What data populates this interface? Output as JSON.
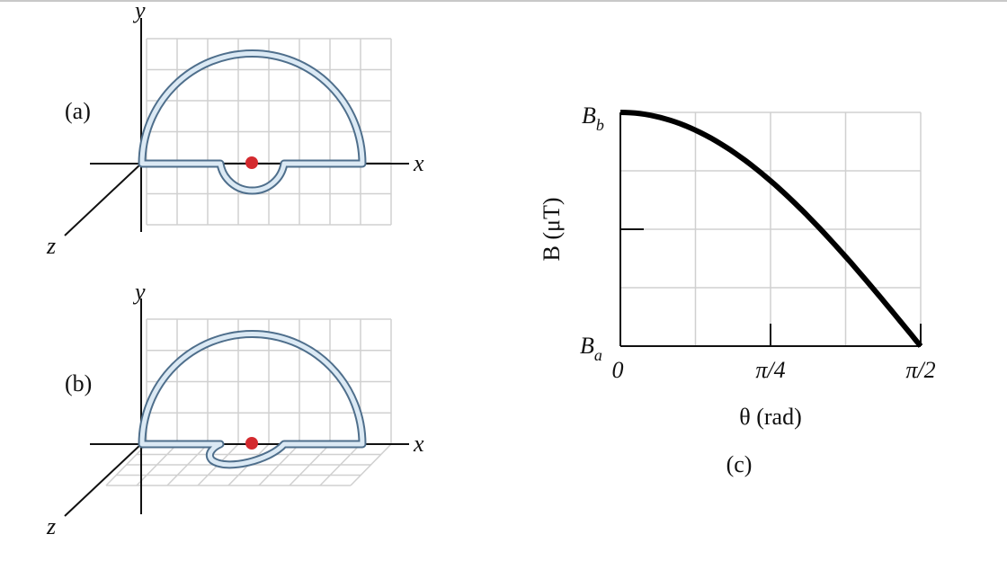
{
  "panel_a": {
    "label": "(a)",
    "axes": {
      "x": "x",
      "y": "y",
      "z": "z"
    }
  },
  "panel_b": {
    "label": "(b)",
    "axes": {
      "x": "x",
      "y": "y",
      "z": "z"
    }
  },
  "panel_c": {
    "label": "(c)",
    "y_axis": {
      "title": "B (μT)",
      "top": {
        "main": "B",
        "sub": "b"
      },
      "bottom": {
        "main": "B",
        "sub": "a"
      }
    },
    "x_axis": {
      "title": "θ (rad)",
      "ticks": [
        "0",
        "π/4",
        "π/2"
      ]
    }
  }
}
